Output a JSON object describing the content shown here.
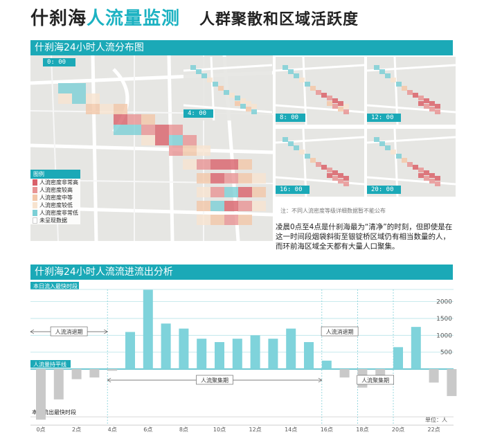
{
  "header": {
    "title_main": "什刹海",
    "title_accent": "人流量监测",
    "title_sub": "人群聚散和区域活跃度"
  },
  "section1": {
    "heading": "什刹海24小时人流分布图",
    "time_labels": [
      "0: 00",
      "4: 00",
      "8: 00",
      "12: 00",
      "16: 00",
      "20: 00"
    ],
    "legend_title": "图例",
    "legend": [
      {
        "label": "人流密度非常高",
        "color": "#d9616a"
      },
      {
        "label": "人流密度较高",
        "color": "#e89494"
      },
      {
        "label": "人流密度中等",
        "color": "#f3c7a8"
      },
      {
        "label": "人流密度较低",
        "color": "#f7e3cf"
      },
      {
        "label": "人流密度非常低",
        "color": "#7ccfd6"
      },
      {
        "label": "未呈现数据",
        "color": "#ffffff"
      }
    ],
    "note": "注：不同人流密度等级详细数据暂不能公布",
    "paragraph": "凌晨0点至4点是什刹海最为“清净”的时刻，但即使是在这一时间段烟袋斜街至银锭桥区域仍有相当数量的人，而环前海区域全天都有大量人口聚集。"
  },
  "section2": {
    "heading": "什刹海24小时人流流进流出分析",
    "inflow_label": "本日流入最快时段",
    "outflow_label": "本日流出最快时段",
    "balance_label": "人流量持平线",
    "unit_label": "单位：人",
    "periods": [
      {
        "label": "人流消退期",
        "from": 0,
        "to": 4
      },
      {
        "label": "人流聚集期",
        "from": 4,
        "to": 16
      },
      {
        "label": "人流消退期",
        "from": 16,
        "to": 18
      },
      {
        "label": "人流聚集期",
        "from": 18,
        "to": 20
      }
    ]
  },
  "colors": {
    "accent": "#1ba9b7",
    "inflow_bar": "#7fd3db",
    "outflow_bar": "#c9c9c9"
  },
  "chart_data": {
    "type": "bar",
    "x": [
      0,
      1,
      2,
      3,
      4,
      5,
      6,
      7,
      8,
      9,
      10,
      11,
      12,
      13,
      14,
      15,
      16,
      17,
      18,
      19,
      20,
      21,
      22,
      23
    ],
    "x_tick_labels": [
      "0点",
      "2点",
      "4点",
      "6点",
      "8点",
      "10点",
      "12点",
      "14点",
      "16点",
      "18点",
      "20点",
      "22点"
    ],
    "x_tick_positions": [
      0,
      2,
      4,
      6,
      8,
      10,
      12,
      14,
      16,
      18,
      20,
      22
    ],
    "values": [
      -1500,
      -900,
      -300,
      -250,
      -50,
      1100,
      2350,
      1350,
      1200,
      900,
      800,
      900,
      1000,
      900,
      1200,
      800,
      250,
      -250,
      -550,
      -450,
      650,
      1250,
      -400,
      -800
    ],
    "ylim": [
      -1800,
      2400
    ],
    "yticks": [
      0,
      500,
      1000,
      1500,
      2000
    ],
    "ytick_labels": [
      "0",
      "500",
      "1000",
      "1500",
      "2000"
    ],
    "xlabel": "",
    "ylabel": "单位：人"
  }
}
